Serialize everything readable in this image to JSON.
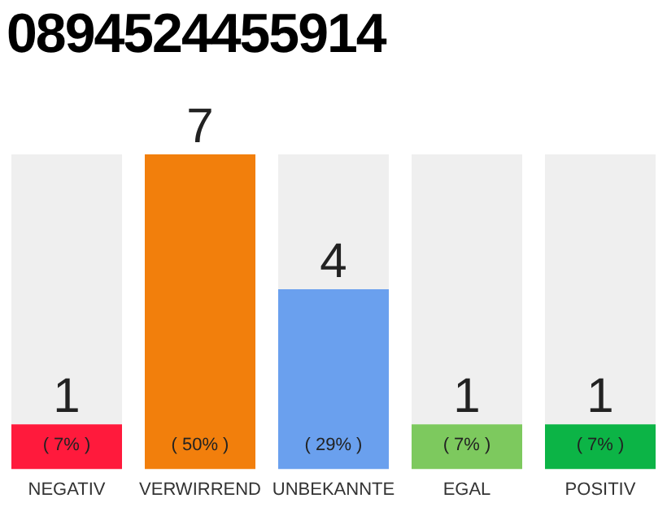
{
  "chart_data": {
    "type": "bar",
    "title": "0894524455914",
    "categories": [
      "NEGATIV",
      "VERWIRREND",
      "UNBEKANNTE",
      "EGAL",
      "POSITIV"
    ],
    "values": [
      1,
      7,
      4,
      1,
      1
    ],
    "colors": [
      "#ff1a3c",
      "#f27f0c",
      "#6aa0ee",
      "#7dc95e",
      "#0cb446"
    ],
    "value_labels": [
      "1",
      "7",
      "4",
      "1",
      "1"
    ],
    "annotations": [
      "( 7% )",
      "( 50% )",
      "( 29% )",
      "( 7% )",
      "( 7% )"
    ],
    "tick_labels": "x",
    "grid": false,
    "legend": false
  }
}
